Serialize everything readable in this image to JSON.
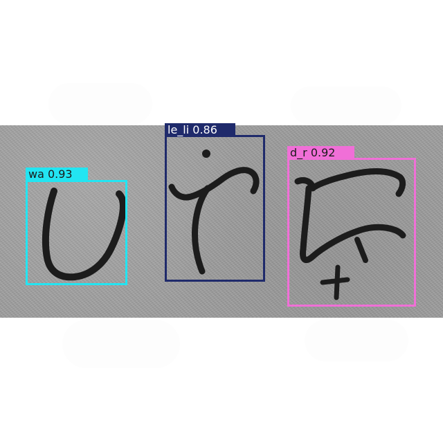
{
  "detections": [
    {
      "class_name": "wa",
      "confidence": "0.93",
      "color": "#22e5f2",
      "text_color": "#1a1a1a"
    },
    {
      "class_name": "le_li",
      "confidence": "0.86",
      "color": "#1f2a6b",
      "text_color": "#ffffff"
    },
    {
      "class_name": "d_r",
      "confidence": "0.92",
      "color": "#f06fd7",
      "text_color": "#1a1a1a"
    }
  ],
  "colors": {
    "page_background": "#ffffff",
    "stone_background": "#9c9c9c",
    "ink": "#1c1c1c"
  }
}
